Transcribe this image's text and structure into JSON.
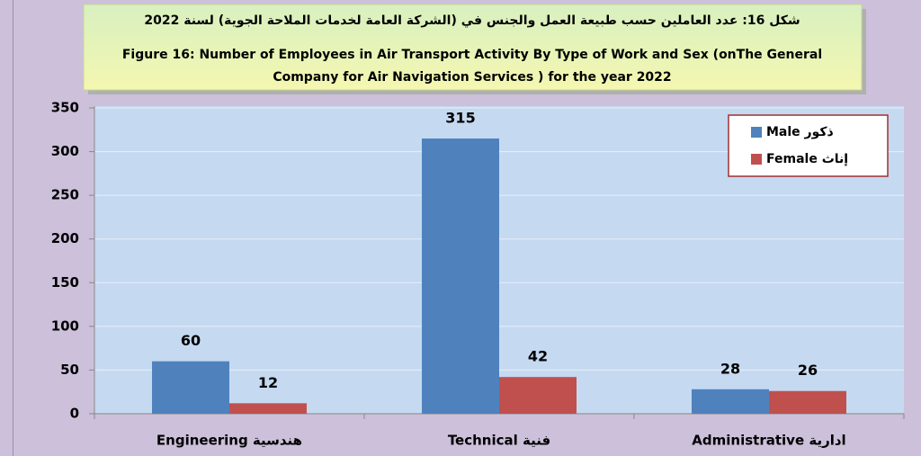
{
  "chart_data": {
    "type": "bar",
    "title": [
      "شكل 16: عدد العاملين حسب طبيعة العمل والجنس في (الشركة العامة لخدمات الملاحة الجوية) لسنة 2022",
      "Figure   16: Number of Employees in Air Transport Activity By Type of Work and Sex (onThe General",
      "Company for Air Navigation Services ) for the year 2022"
    ],
    "categories": [
      "Engineering  هندسية",
      "Technical  فنية",
      "Administrative ادارية"
    ],
    "series": [
      {
        "name": "Male  ذكور",
        "color": "#4f81bd",
        "values": [
          60,
          315,
          28
        ]
      },
      {
        "name": "Female  إناث",
        "color": "#c0504d",
        "values": [
          12,
          42,
          26
        ]
      }
    ],
    "ylim": [
      0,
      350
    ],
    "yticks": [
      0,
      50,
      100,
      150,
      200,
      250,
      300,
      350
    ],
    "grid": true,
    "legend": "upper right"
  }
}
